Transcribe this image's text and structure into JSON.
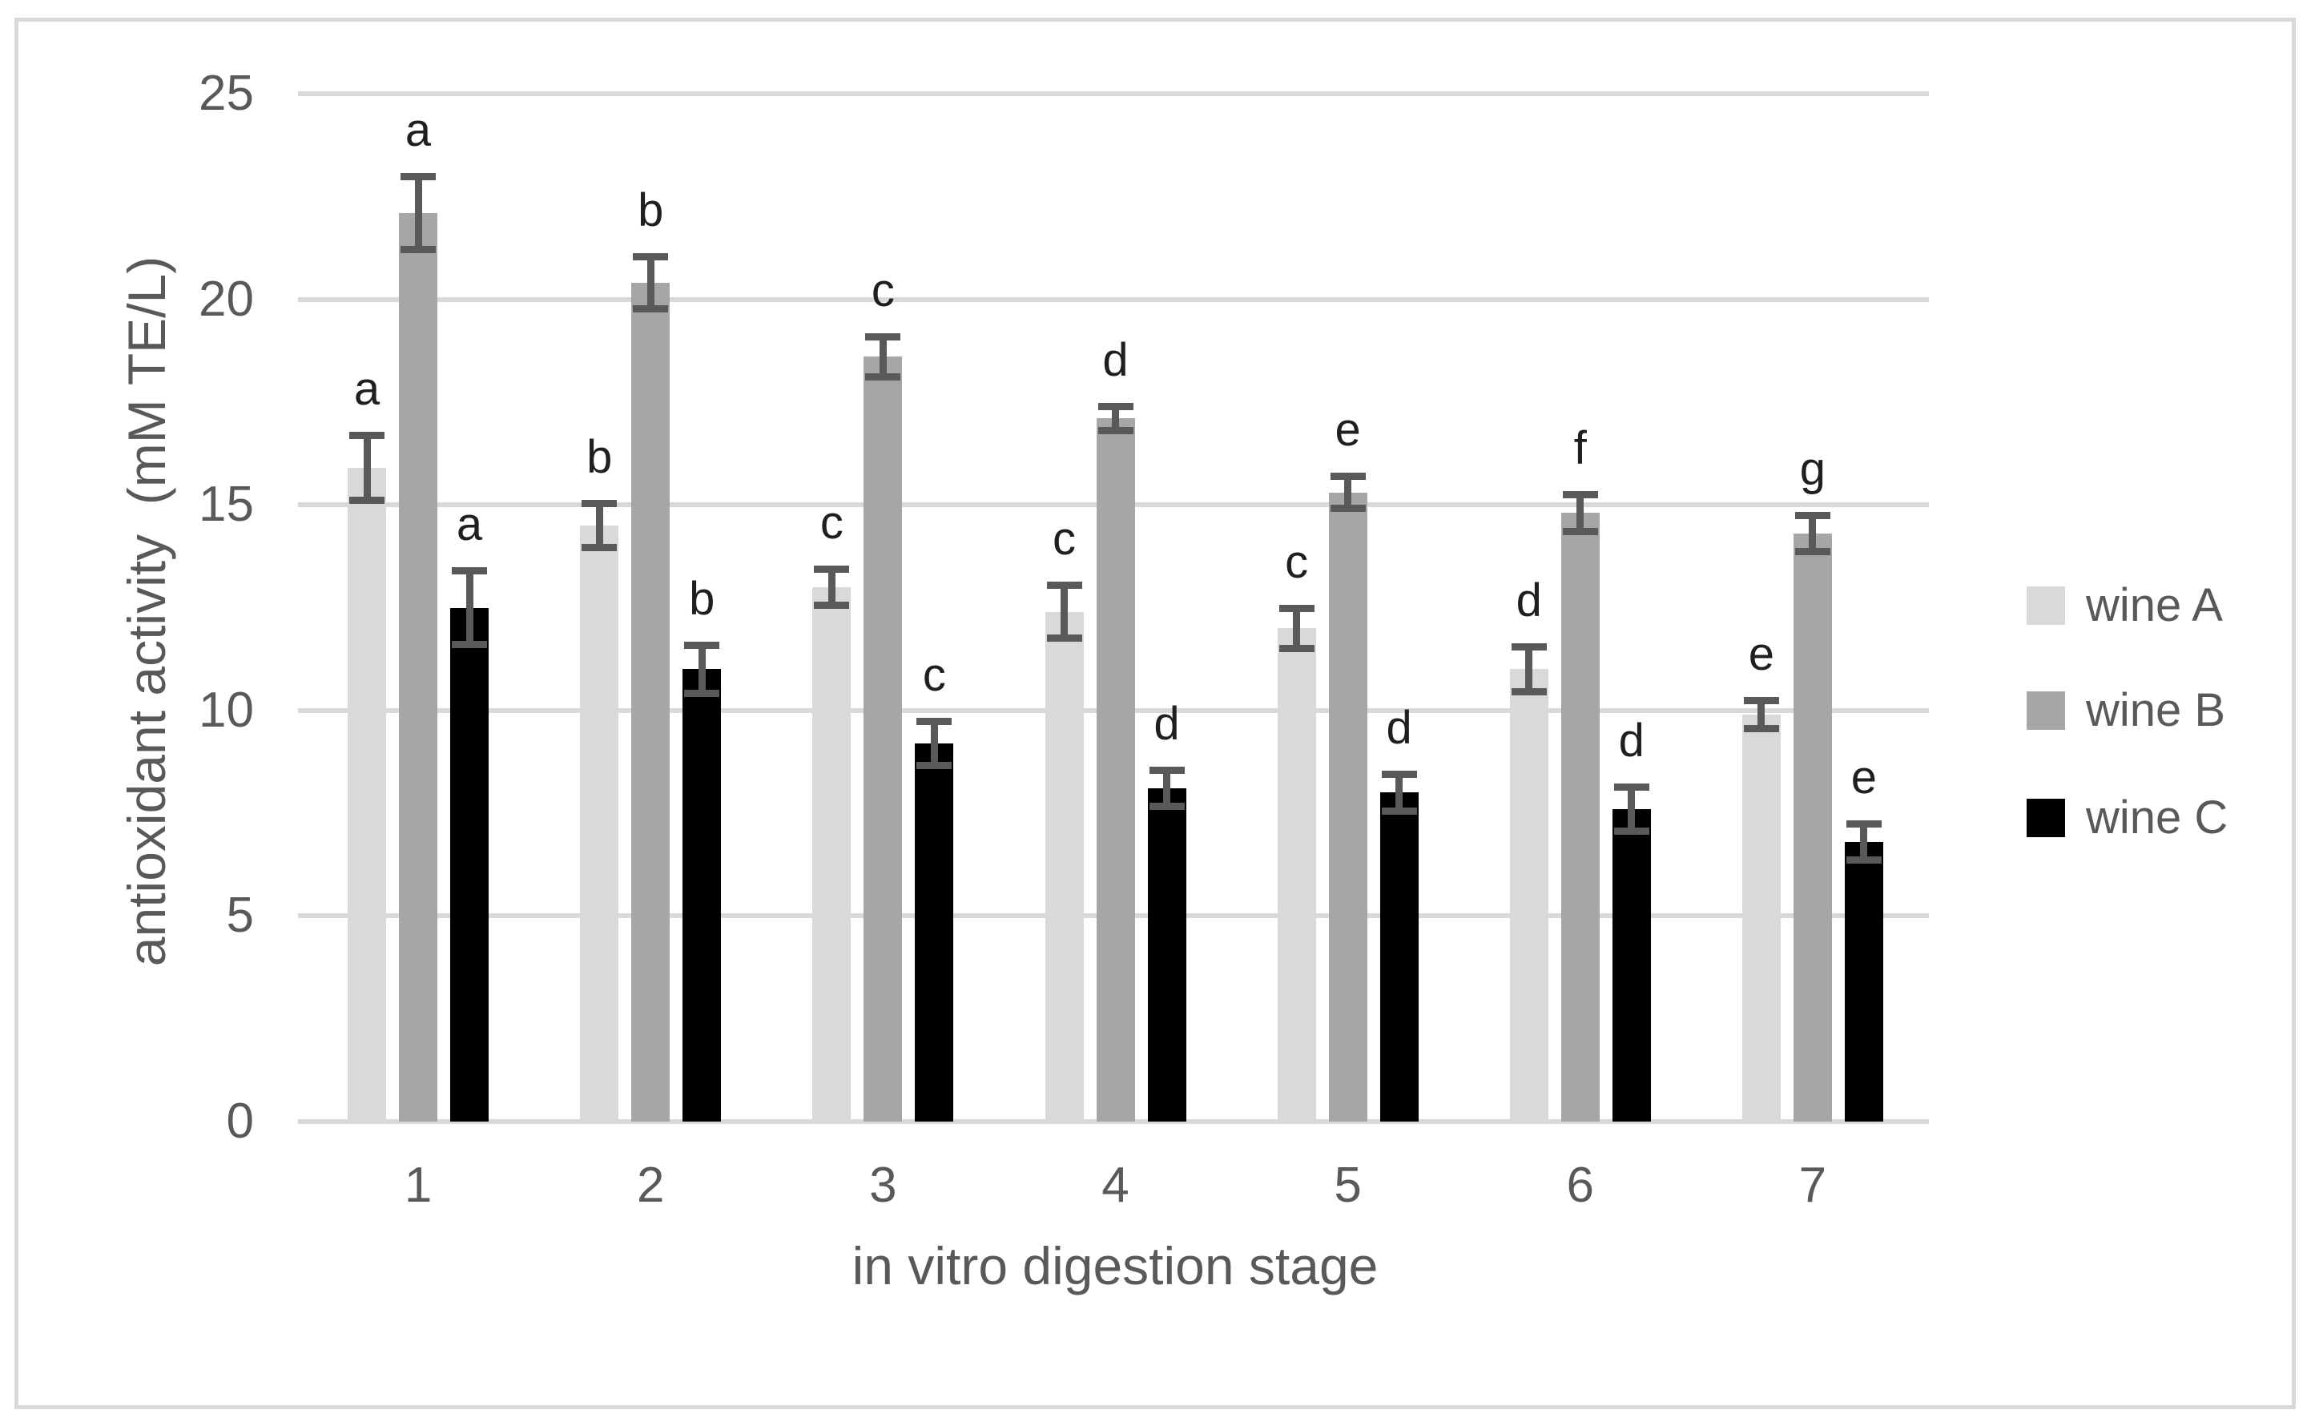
{
  "chart_data": {
    "type": "bar",
    "title": "",
    "xlabel": "in vitro digestion stage",
    "ylabel": "antioxidant activity  (mM TE/L)",
    "categories": [
      "1",
      "2",
      "3",
      "4",
      "5",
      "6",
      "7"
    ],
    "ylim": [
      0,
      25
    ],
    "ytick_step": 5,
    "yticks": [
      0,
      5,
      10,
      15,
      20,
      25
    ],
    "ytick_labels": [
      "0",
      "5",
      "10",
      "15",
      "20",
      "25"
    ],
    "grid": true,
    "legend_position": "right",
    "series": [
      {
        "name": "wine A",
        "color": "#d9d9d9",
        "values": [
          15.9,
          14.5,
          13.0,
          12.4,
          12.0,
          11.0,
          9.9
        ],
        "errors": [
          0.8,
          0.55,
          0.45,
          0.65,
          0.5,
          0.55,
          0.35
        ],
        "letters": [
          "a",
          "b",
          "c",
          "c",
          "c",
          "d",
          "e"
        ]
      },
      {
        "name": "wine B",
        "color": "#a6a6a6",
        "values": [
          22.1,
          20.4,
          18.6,
          17.1,
          15.3,
          14.8,
          14.3
        ],
        "errors": [
          0.9,
          0.65,
          0.5,
          0.3,
          0.4,
          0.45,
          0.45
        ],
        "letters": [
          "a",
          "b",
          "c",
          "d",
          "e",
          "f",
          "g"
        ]
      },
      {
        "name": "wine C",
        "color": "#000000",
        "values": [
          12.5,
          11.0,
          9.2,
          8.1,
          8.0,
          7.6,
          6.8
        ],
        "errors": [
          0.9,
          0.6,
          0.55,
          0.45,
          0.45,
          0.55,
          0.45
        ],
        "letters": [
          "a",
          "b",
          "c",
          "d",
          "d",
          "d",
          "e"
        ]
      }
    ],
    "error_bar_color": "#595959",
    "gridline_color": "#d9d9d9",
    "axis_text_color": "#595959",
    "letter_color": "#1f1f1f",
    "frame_border_color": "#d9d9d9"
  }
}
